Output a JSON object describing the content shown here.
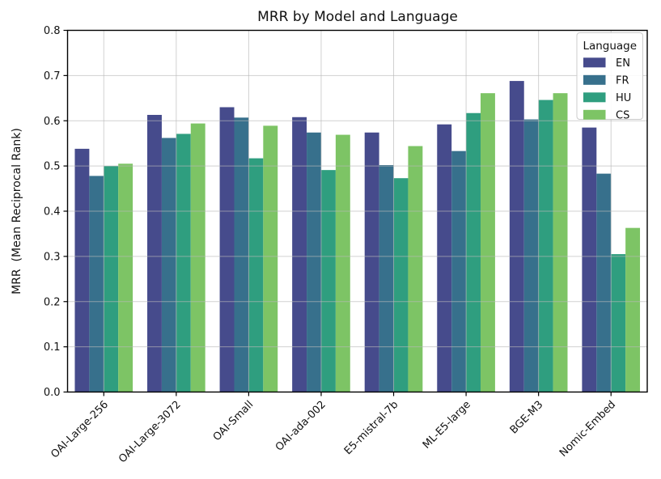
{
  "chart_data": {
    "type": "bar",
    "title": "MRR by Model and Language",
    "xlabel": "",
    "ylabel": "MRR  (Mean Reciprocal Rank)",
    "ylim": [
      0.0,
      0.8
    ],
    "ytick_step": 0.1,
    "grid": true,
    "grid_color": "#b9b9b9",
    "legend_title": "Language",
    "legend_position": "upper right",
    "categories": [
      "OAI-Large-256",
      "OAI-Large-3072",
      "OAI-Small",
      "OAI-ada-002",
      "E5-mistral-7b",
      "ML-E5-large",
      "BGE-M3",
      "Nomic-Embed"
    ],
    "series": [
      {
        "name": "EN",
        "color": "#464b8c",
        "values": [
          0.538,
          0.613,
          0.63,
          0.608,
          0.574,
          0.592,
          0.688,
          0.585
        ]
      },
      {
        "name": "FR",
        "color": "#37708c",
        "values": [
          0.478,
          0.562,
          0.607,
          0.574,
          0.502,
          0.533,
          0.603,
          0.483
        ]
      },
      {
        "name": "HU",
        "color": "#2f9e7f",
        "values": [
          0.5,
          0.571,
          0.517,
          0.491,
          0.473,
          0.617,
          0.646,
          0.305
        ]
      },
      {
        "name": "CS",
        "color": "#7dc465",
        "values": [
          0.505,
          0.594,
          0.589,
          0.569,
          0.544,
          0.661,
          0.661,
          0.363
        ]
      }
    ]
  }
}
